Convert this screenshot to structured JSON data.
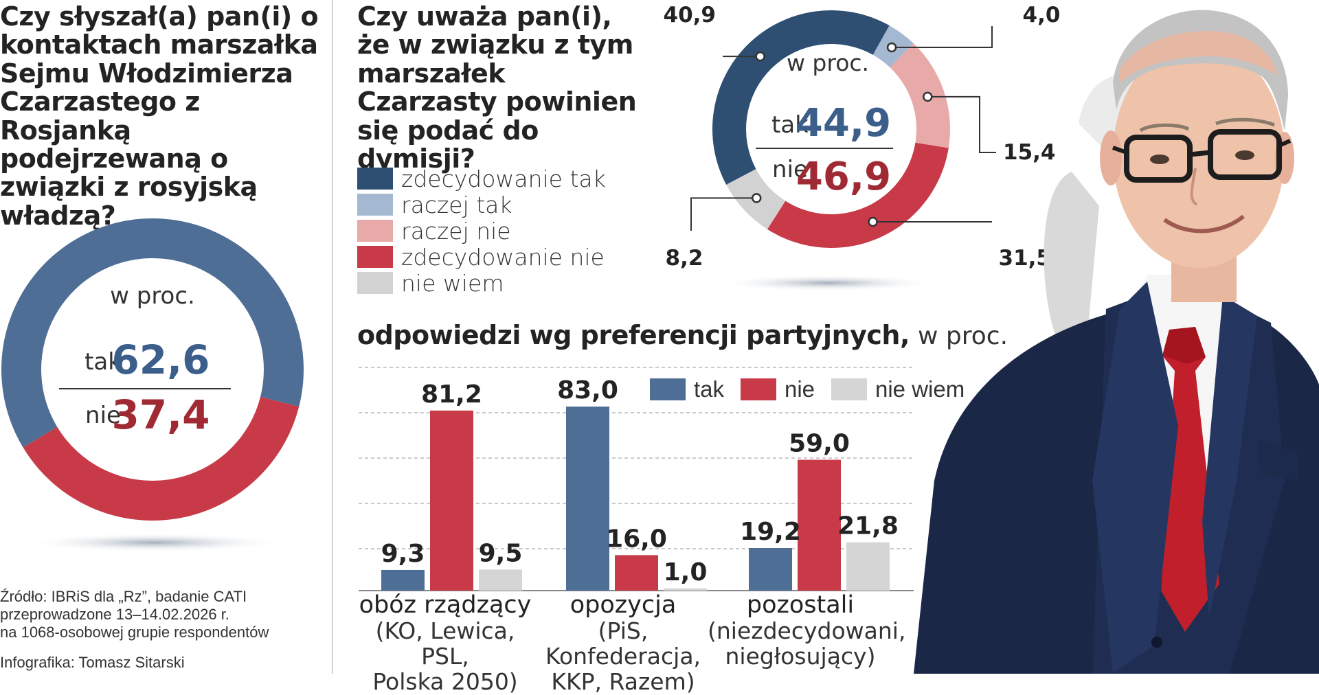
{
  "q1": {
    "title": "Czy słyszał(a) pan(i) o  kontaktach marszałka Sejmu Włodzimierza Czarzastego z Rosjanką podejrzewaną o związki z rosyjską władzą?",
    "unit_label": "w proc.",
    "tak_label": "tak",
    "tak_value": "62,6",
    "nie_label": "nie",
    "nie_value": "37,4"
  },
  "q2": {
    "title": "Czy uważa pan(i), że w związku z tym marszałek Czarzasty powinien się podać do dymisji?",
    "unit_label": "w proc.",
    "tak_label": "tak",
    "tak_value": "44,9",
    "nie_label": "nie",
    "nie_value": "46,9",
    "legend": [
      {
        "label": "zdecydowanie tak",
        "color": "#2e4f72"
      },
      {
        "label": "raczej tak",
        "color": "#a4b8d2"
      },
      {
        "label": "raczej nie",
        "color": "#e8aaa8"
      },
      {
        "label": "zdecydowanie nie",
        "color": "#c83a48"
      },
      {
        "label": "nie wiem",
        "color": "#d2d2d2"
      }
    ],
    "slice_labels": [
      "40,9",
      "4,0",
      "15,4",
      "31,5",
      "8,2"
    ]
  },
  "section": {
    "title": "odpowiedzi wg preferencji partyjnych,",
    "subtitle": "w proc."
  },
  "bar_legend": [
    {
      "label": "tak",
      "color": "#4f6e96"
    },
    {
      "label": "nie",
      "color": "#c83a48"
    },
    {
      "label": "nie wiem",
      "color": "#d5d5d5"
    }
  ],
  "groups": [
    {
      "name": "obóz rządzący",
      "sub1": "(KO, Lewica, PSL,",
      "sub2": "Polska 2050)"
    },
    {
      "name": "opozycja",
      "sub1": "(PiS, Konfederacja,",
      "sub2": "KKP, Razem)"
    },
    {
      "name": "pozostali",
      "sub1": "(niezdecydowani,",
      "sub2": "niegłosujący)"
    }
  ],
  "source": {
    "line1": "Źródło: IBRiS dla „Rz”, badanie CATI",
    "line2": "przeprowadzone 13–14.02.2026 r.",
    "line3": "na 1068-osobowej grupie respondentów",
    "credit": "Infografika: Tomasz Sitarski"
  },
  "chart_data": [
    {
      "type": "pie",
      "title": "Czy słyszał(a) pan(i) o  kontaktach marszałka Sejmu Włodzimierza Czarzastego z Rosjanką podejrzewaną o związki z rosyjską władzą?",
      "unit": "w proc.",
      "categories": [
        "tak",
        "nie"
      ],
      "values": [
        62.6,
        37.4
      ],
      "colors": [
        "#4f6e96",
        "#c83a48"
      ]
    },
    {
      "type": "pie",
      "title": "Czy uważa pan(i), że w związku z tym marszałek Czarzasty powinien się podać do dymisji?",
      "unit": "w proc.",
      "categories": [
        "zdecydowanie tak",
        "raczej tak",
        "raczej nie",
        "zdecydowanie nie",
        "nie wiem"
      ],
      "values": [
        40.9,
        4.0,
        15.4,
        31.5,
        8.2
      ],
      "colors": [
        "#2e4f72",
        "#a4b8d2",
        "#e8aaa8",
        "#c83a48",
        "#d2d2d2"
      ],
      "totals": {
        "tak": 44.9,
        "nie": 46.9
      }
    },
    {
      "type": "bar",
      "title": "odpowiedzi wg preferencji partyjnych, w proc.",
      "categories": [
        "obóz rządzący",
        "opozycja",
        "pozostali"
      ],
      "series": [
        {
          "name": "tak",
          "values": [
            9.3,
            83.0,
            19.2
          ],
          "labels": [
            "9,3",
            "83,0",
            "19,2"
          ],
          "color": "#4f6e96"
        },
        {
          "name": "nie",
          "values": [
            81.2,
            16.0,
            59.0
          ],
          "labels": [
            "81,2",
            "16,0",
            "59,0"
          ],
          "color": "#c83a48"
        },
        {
          "name": "nie wiem",
          "values": [
            9.5,
            1.0,
            21.8
          ],
          "labels": [
            "9,5",
            "1,0",
            "21,8"
          ],
          "color": "#d5d5d5"
        }
      ],
      "ylim": [
        0,
        83
      ],
      "grid": true
    }
  ]
}
